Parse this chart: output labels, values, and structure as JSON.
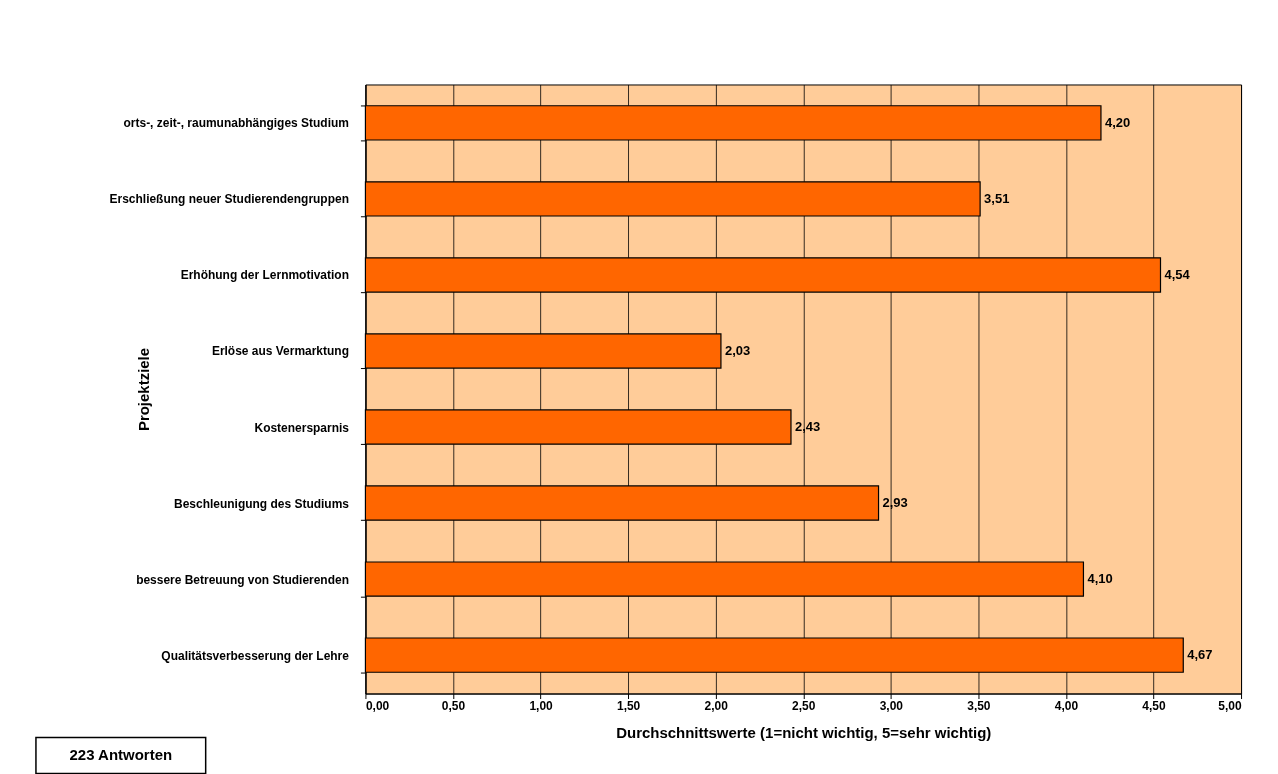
{
  "chart_data": {
    "type": "bar",
    "orientation": "horizontal",
    "categories": [
      "orts-, zeit-, raumunabhängiges Studium",
      "Erschließung neuer Studierendengruppen",
      "Erhöhung der Lernmotivation",
      "Erlöse aus Vermarktung",
      "Kostenersparnis",
      "Beschleunigung des Studiums",
      "bessere Betreuung von Studierenden",
      "Qualitätsverbesserung der Lehre"
    ],
    "values": [
      4.2,
      3.51,
      4.54,
      2.03,
      2.43,
      2.93,
      4.1,
      4.67
    ],
    "value_labels": [
      "4,20",
      "3,51",
      "4,54",
      "2,03",
      "2,43",
      "2,93",
      "4,10",
      "4,67"
    ],
    "color": "#ff6600",
    "xlabel": "Durchschnittswerte (1=nicht wichtig, 5=sehr wichtig)",
    "ylabel": "Projektziele",
    "xlim": [
      0,
      5
    ],
    "xticks": [
      {
        "value": 0,
        "label": "0,00"
      },
      {
        "value": 0.5,
        "label": "0,50"
      },
      {
        "value": 1,
        "label": "1,00"
      },
      {
        "value": 1.5,
        "label": "1,50"
      },
      {
        "value": 2,
        "label": "2,00"
      },
      {
        "value": 2.5,
        "label": "2,50"
      },
      {
        "value": 3,
        "label": "3,00"
      },
      {
        "value": 3.5,
        "label": "3,50"
      },
      {
        "value": 4,
        "label": "4,00"
      },
      {
        "value": 4.5,
        "label": "4,50"
      },
      {
        "value": 5,
        "label": "5,00"
      }
    ],
    "grid": "x",
    "legend": false,
    "annotations": [
      "223 Antworten"
    ]
  }
}
